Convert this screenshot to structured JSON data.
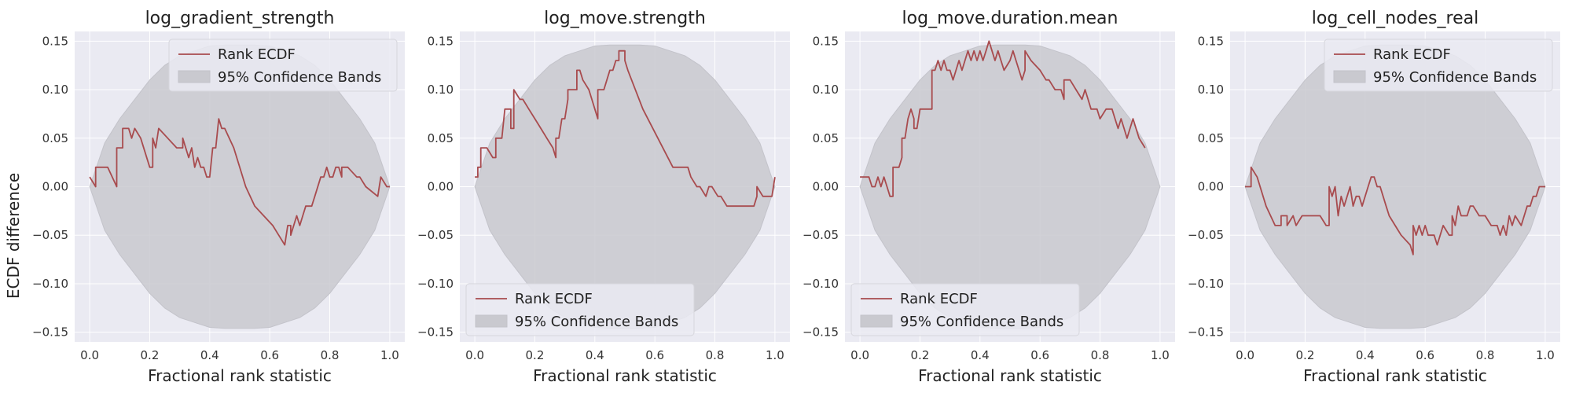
{
  "colors": {
    "plot_background": "#eaeaf2",
    "grid": "#ffffff",
    "ecdf_line": "#a84b4e",
    "band_fill": "#c9c9cf",
    "band_edge": "#c3c3ca"
  },
  "y_axis_label": "ECDF difference",
  "chart_data": [
    {
      "type": "line",
      "title": "log_gradient_strength",
      "xlabel": "Fractional rank statistic",
      "ylabel": "ECDF difference",
      "xlim": [
        -0.05,
        1.05
      ],
      "ylim": [
        -0.16,
        0.16
      ],
      "xticks": [
        "0.0",
        "0.2",
        "0.4",
        "0.6",
        "0.8",
        "1.0"
      ],
      "yticks": [
        "−0.15",
        "−0.10",
        "−0.05",
        "0.00",
        "0.05",
        "0.10",
        "0.15"
      ],
      "grid": true,
      "legend": {
        "position": "top-right",
        "entries": [
          "Rank ECDF",
          "95% Confidence Bands"
        ]
      },
      "series": [
        {
          "name": "Rank ECDF",
          "x": [
            0.0,
            0.02,
            0.02,
            0.06,
            0.09,
            0.09,
            0.11,
            0.11,
            0.13,
            0.14,
            0.15,
            0.17,
            0.2,
            0.21,
            0.21,
            0.22,
            0.23,
            0.23,
            0.26,
            0.29,
            0.31,
            0.31,
            0.33,
            0.34,
            0.35,
            0.36,
            0.37,
            0.38,
            0.39,
            0.4,
            0.41,
            0.42,
            0.43,
            0.44,
            0.45,
            0.48,
            0.52,
            0.55,
            0.58,
            0.61,
            0.63,
            0.65,
            0.66,
            0.67,
            0.67,
            0.69,
            0.7,
            0.71,
            0.72,
            0.74,
            0.75,
            0.75,
            0.77,
            0.78,
            0.79,
            0.8,
            0.81,
            0.82,
            0.83,
            0.84,
            0.84,
            0.86,
            0.89,
            0.9,
            0.92,
            0.96,
            0.97,
            0.97,
            0.99,
            1.0
          ],
          "y": [
            0.01,
            0.0,
            0.02,
            0.02,
            0.0,
            0.04,
            0.04,
            0.06,
            0.06,
            0.05,
            0.06,
            0.05,
            0.02,
            0.02,
            0.05,
            0.04,
            0.06,
            0.06,
            0.05,
            0.04,
            0.04,
            0.05,
            0.03,
            0.04,
            0.02,
            0.03,
            0.02,
            0.02,
            0.01,
            0.01,
            0.04,
            0.04,
            0.07,
            0.06,
            0.06,
            0.04,
            0.0,
            -0.02,
            -0.03,
            -0.04,
            -0.05,
            -0.06,
            -0.04,
            -0.04,
            -0.05,
            -0.03,
            -0.04,
            -0.03,
            -0.02,
            -0.02,
            -0.01,
            -0.01,
            0.01,
            0.01,
            0.02,
            0.01,
            0.01,
            0.02,
            0.02,
            0.01,
            0.02,
            0.02,
            0.01,
            0.01,
            0.0,
            -0.01,
            0.01,
            0.01,
            0.0,
            0.0
          ]
        }
      ],
      "band": {
        "name": "95% Confidence Bands",
        "x": [
          0.0,
          0.05,
          0.1,
          0.15,
          0.2,
          0.25,
          0.3,
          0.35,
          0.4,
          0.45,
          0.5,
          0.55,
          0.6,
          0.65,
          0.7,
          0.75,
          0.8,
          0.85,
          0.9,
          0.95,
          1.0
        ],
        "upper": [
          0.0,
          0.045,
          0.07,
          0.09,
          0.11,
          0.125,
          0.135,
          0.14,
          0.145,
          0.146,
          0.146,
          0.146,
          0.145,
          0.14,
          0.135,
          0.125,
          0.11,
          0.09,
          0.07,
          0.045,
          0.0
        ],
        "lower": [
          0.0,
          -0.045,
          -0.07,
          -0.09,
          -0.11,
          -0.125,
          -0.135,
          -0.14,
          -0.145,
          -0.146,
          -0.146,
          -0.146,
          -0.145,
          -0.14,
          -0.135,
          -0.125,
          -0.11,
          -0.09,
          -0.07,
          -0.045,
          0.0
        ]
      }
    },
    {
      "type": "line",
      "title": "log_move.strength",
      "xlabel": "Fractional rank statistic",
      "ylabel": "",
      "xlim": [
        -0.05,
        1.05
      ],
      "ylim": [
        -0.16,
        0.16
      ],
      "xticks": [
        "0.0",
        "0.2",
        "0.4",
        "0.6",
        "0.8",
        "1.0"
      ],
      "yticks": [
        "−0.15",
        "−0.10",
        "−0.05",
        "0.00",
        "0.05",
        "0.10",
        "0.15"
      ],
      "grid": true,
      "legend": {
        "position": "bottom-left",
        "entries": [
          "Rank ECDF",
          "95% Confidence Bands"
        ]
      },
      "series": [
        {
          "name": "Rank ECDF",
          "x": [
            0.0,
            0.01,
            0.01,
            0.02,
            0.02,
            0.04,
            0.06,
            0.07,
            0.07,
            0.09,
            0.1,
            0.12,
            0.12,
            0.13,
            0.13,
            0.15,
            0.16,
            0.18,
            0.2,
            0.22,
            0.24,
            0.26,
            0.27,
            0.27,
            0.28,
            0.29,
            0.3,
            0.31,
            0.31,
            0.33,
            0.34,
            0.34,
            0.35,
            0.36,
            0.38,
            0.39,
            0.4,
            0.41,
            0.41,
            0.43,
            0.44,
            0.45,
            0.46,
            0.47,
            0.48,
            0.48,
            0.49,
            0.5,
            0.5,
            0.51,
            0.56,
            0.61,
            0.66,
            0.69,
            0.71,
            0.72,
            0.74,
            0.75,
            0.77,
            0.78,
            0.79,
            0.81,
            0.82,
            0.84,
            0.85,
            0.9,
            0.93,
            0.94,
            0.94,
            0.96,
            0.99,
            1.0
          ],
          "y": [
            0.01,
            0.01,
            0.02,
            0.02,
            0.04,
            0.04,
            0.03,
            0.03,
            0.05,
            0.05,
            0.08,
            0.08,
            0.06,
            0.06,
            0.1,
            0.09,
            0.09,
            0.08,
            0.07,
            0.06,
            0.05,
            0.04,
            0.03,
            0.05,
            0.05,
            0.07,
            0.07,
            0.09,
            0.1,
            0.1,
            0.1,
            0.12,
            0.12,
            0.11,
            0.1,
            0.09,
            0.08,
            0.07,
            0.1,
            0.1,
            0.11,
            0.12,
            0.12,
            0.13,
            0.13,
            0.14,
            0.14,
            0.14,
            0.13,
            0.12,
            0.08,
            0.05,
            0.02,
            0.02,
            0.02,
            0.01,
            0.0,
            0.0,
            -0.01,
            0.0,
            0.0,
            -0.01,
            -0.01,
            -0.02,
            -0.02,
            -0.02,
            -0.02,
            -0.01,
            0.0,
            -0.01,
            -0.01,
            0.01
          ]
        }
      ],
      "band": {
        "name": "95% Confidence Bands",
        "x": [
          0.0,
          0.05,
          0.1,
          0.15,
          0.2,
          0.25,
          0.3,
          0.35,
          0.4,
          0.45,
          0.5,
          0.55,
          0.6,
          0.65,
          0.7,
          0.75,
          0.8,
          0.85,
          0.9,
          0.95,
          1.0
        ],
        "upper": [
          0.0,
          0.045,
          0.07,
          0.09,
          0.11,
          0.125,
          0.135,
          0.14,
          0.145,
          0.146,
          0.146,
          0.146,
          0.145,
          0.14,
          0.135,
          0.125,
          0.11,
          0.09,
          0.07,
          0.045,
          0.0
        ],
        "lower": [
          0.0,
          -0.045,
          -0.07,
          -0.09,
          -0.11,
          -0.125,
          -0.135,
          -0.14,
          -0.145,
          -0.146,
          -0.146,
          -0.146,
          -0.145,
          -0.14,
          -0.135,
          -0.125,
          -0.11,
          -0.09,
          -0.07,
          -0.045,
          0.0
        ]
      }
    },
    {
      "type": "line",
      "title": "log_move.duration.mean",
      "xlabel": "Fractional rank statistic",
      "ylabel": "",
      "xlim": [
        -0.05,
        1.05
      ],
      "ylim": [
        -0.16,
        0.16
      ],
      "xticks": [
        "0.0",
        "0.2",
        "0.4",
        "0.6",
        "0.8",
        "1.0"
      ],
      "yticks": [
        "−0.15",
        "−0.10",
        "−0.05",
        "0.00",
        "0.05",
        "0.10",
        "0.15"
      ],
      "grid": true,
      "legend": {
        "position": "bottom-left",
        "entries": [
          "Rank ECDF",
          "95% Confidence Bands"
        ]
      },
      "series": [
        {
          "name": "Rank ECDF",
          "x": [
            0.0,
            0.03,
            0.04,
            0.05,
            0.06,
            0.07,
            0.08,
            0.09,
            0.1,
            0.11,
            0.11,
            0.13,
            0.14,
            0.14,
            0.15,
            0.16,
            0.17,
            0.18,
            0.18,
            0.19,
            0.2,
            0.21,
            0.21,
            0.24,
            0.24,
            0.25,
            0.26,
            0.27,
            0.28,
            0.29,
            0.3,
            0.31,
            0.32,
            0.33,
            0.34,
            0.35,
            0.36,
            0.37,
            0.38,
            0.39,
            0.4,
            0.41,
            0.42,
            0.43,
            0.44,
            0.45,
            0.46,
            0.47,
            0.48,
            0.48,
            0.5,
            0.51,
            0.52,
            0.53,
            0.54,
            0.55,
            0.55,
            0.57,
            0.6,
            0.62,
            0.63,
            0.65,
            0.67,
            0.68,
            0.68,
            0.7,
            0.72,
            0.74,
            0.75,
            0.76,
            0.77,
            0.79,
            0.8,
            0.82,
            0.84,
            0.85,
            0.86,
            0.87,
            0.88,
            0.89,
            0.9,
            0.91,
            0.91,
            0.93,
            0.95
          ],
          "y": [
            0.01,
            0.01,
            0.0,
            0.0,
            0.01,
            0.0,
            0.01,
            0.0,
            -0.01,
            -0.01,
            0.02,
            0.02,
            0.03,
            0.05,
            0.05,
            0.07,
            0.08,
            0.07,
            0.06,
            0.06,
            0.08,
            0.08,
            0.08,
            0.08,
            0.12,
            0.12,
            0.13,
            0.12,
            0.13,
            0.12,
            0.12,
            0.11,
            0.12,
            0.13,
            0.12,
            0.13,
            0.14,
            0.13,
            0.14,
            0.13,
            0.14,
            0.13,
            0.14,
            0.15,
            0.14,
            0.13,
            0.14,
            0.13,
            0.12,
            0.12,
            0.13,
            0.14,
            0.13,
            0.12,
            0.11,
            0.12,
            0.14,
            0.13,
            0.12,
            0.11,
            0.11,
            0.1,
            0.1,
            0.09,
            0.11,
            0.11,
            0.1,
            0.09,
            0.1,
            0.09,
            0.08,
            0.08,
            0.07,
            0.08,
            0.08,
            0.07,
            0.06,
            0.07,
            0.06,
            0.05,
            0.06,
            0.07,
            0.07,
            0.05,
            0.04
          ]
        }
      ],
      "band": {
        "name": "95% Confidence Bands",
        "x": [
          0.0,
          0.05,
          0.1,
          0.15,
          0.2,
          0.25,
          0.3,
          0.35,
          0.4,
          0.45,
          0.5,
          0.55,
          0.6,
          0.65,
          0.7,
          0.75,
          0.8,
          0.85,
          0.9,
          0.95,
          1.0
        ],
        "upper": [
          0.0,
          0.045,
          0.07,
          0.09,
          0.11,
          0.125,
          0.135,
          0.14,
          0.145,
          0.146,
          0.146,
          0.146,
          0.145,
          0.14,
          0.135,
          0.125,
          0.11,
          0.09,
          0.07,
          0.045,
          0.0
        ],
        "lower": [
          0.0,
          -0.045,
          -0.07,
          -0.09,
          -0.11,
          -0.125,
          -0.135,
          -0.14,
          -0.145,
          -0.146,
          -0.146,
          -0.146,
          -0.145,
          -0.14,
          -0.135,
          -0.125,
          -0.11,
          -0.09,
          -0.07,
          -0.045,
          0.0
        ]
      }
    },
    {
      "type": "line",
      "title": "log_cell_nodes_real",
      "xlabel": "Fractional rank statistic",
      "ylabel": "",
      "xlim": [
        -0.05,
        1.05
      ],
      "ylim": [
        -0.16,
        0.16
      ],
      "xticks": [
        "0.0",
        "0.2",
        "0.4",
        "0.6",
        "0.8",
        "1.0"
      ],
      "yticks": [
        "−0.15",
        "−0.10",
        "−0.05",
        "0.00",
        "0.05",
        "0.10",
        "0.15"
      ],
      "grid": true,
      "legend": {
        "position": "top-right",
        "entries": [
          "Rank ECDF",
          "95% Confidence Bands"
        ]
      },
      "series": [
        {
          "name": "Rank ECDF",
          "x": [
            0.0,
            0.02,
            0.02,
            0.04,
            0.07,
            0.1,
            0.12,
            0.12,
            0.14,
            0.14,
            0.16,
            0.17,
            0.19,
            0.2,
            0.22,
            0.25,
            0.27,
            0.28,
            0.28,
            0.29,
            0.3,
            0.31,
            0.32,
            0.33,
            0.34,
            0.35,
            0.36,
            0.37,
            0.38,
            0.39,
            0.4,
            0.41,
            0.42,
            0.43,
            0.44,
            0.45,
            0.46,
            0.47,
            0.48,
            0.5,
            0.52,
            0.55,
            0.56,
            0.56,
            0.57,
            0.58,
            0.59,
            0.6,
            0.61,
            0.62,
            0.63,
            0.64,
            0.66,
            0.68,
            0.69,
            0.69,
            0.7,
            0.71,
            0.72,
            0.73,
            0.74,
            0.75,
            0.76,
            0.78,
            0.8,
            0.82,
            0.84,
            0.85,
            0.86,
            0.87,
            0.88,
            0.89,
            0.9,
            0.9,
            0.92,
            0.93,
            0.94,
            0.95,
            0.96,
            0.97,
            0.98,
            0.99,
            1.0,
            1.0
          ],
          "y": [
            0.0,
            0.0,
            0.02,
            0.01,
            -0.02,
            -0.04,
            -0.04,
            -0.03,
            -0.03,
            -0.04,
            -0.03,
            -0.04,
            -0.03,
            -0.03,
            -0.03,
            -0.03,
            -0.04,
            -0.04,
            0.0,
            -0.01,
            0.0,
            -0.03,
            -0.01,
            -0.02,
            -0.01,
            0.0,
            -0.02,
            -0.01,
            -0.01,
            -0.02,
            -0.01,
            0.0,
            0.01,
            0.01,
            0.0,
            0.0,
            -0.01,
            -0.02,
            -0.03,
            -0.04,
            -0.05,
            -0.06,
            -0.07,
            -0.04,
            -0.05,
            -0.04,
            -0.05,
            -0.04,
            -0.05,
            -0.05,
            -0.05,
            -0.06,
            -0.04,
            -0.05,
            -0.05,
            -0.03,
            -0.04,
            -0.02,
            -0.03,
            -0.03,
            -0.03,
            -0.02,
            -0.02,
            -0.03,
            -0.03,
            -0.04,
            -0.04,
            -0.05,
            -0.04,
            -0.05,
            -0.03,
            -0.04,
            -0.03,
            -0.03,
            -0.04,
            -0.03,
            -0.02,
            -0.02,
            -0.01,
            -0.01,
            0.0,
            0.0,
            0.0,
            0.0
          ]
        }
      ],
      "band": {
        "name": "95% Confidence Bands",
        "x": [
          0.0,
          0.05,
          0.1,
          0.15,
          0.2,
          0.25,
          0.3,
          0.35,
          0.4,
          0.45,
          0.5,
          0.55,
          0.6,
          0.65,
          0.7,
          0.75,
          0.8,
          0.85,
          0.9,
          0.95,
          1.0
        ],
        "upper": [
          0.0,
          0.045,
          0.07,
          0.09,
          0.11,
          0.125,
          0.135,
          0.14,
          0.145,
          0.146,
          0.146,
          0.146,
          0.145,
          0.14,
          0.135,
          0.125,
          0.11,
          0.09,
          0.07,
          0.045,
          0.0
        ],
        "lower": [
          0.0,
          -0.045,
          -0.07,
          -0.09,
          -0.11,
          -0.125,
          -0.135,
          -0.14,
          -0.145,
          -0.146,
          -0.146,
          -0.146,
          -0.145,
          -0.14,
          -0.135,
          -0.125,
          -0.11,
          -0.09,
          -0.07,
          -0.045,
          0.0
        ]
      }
    }
  ]
}
